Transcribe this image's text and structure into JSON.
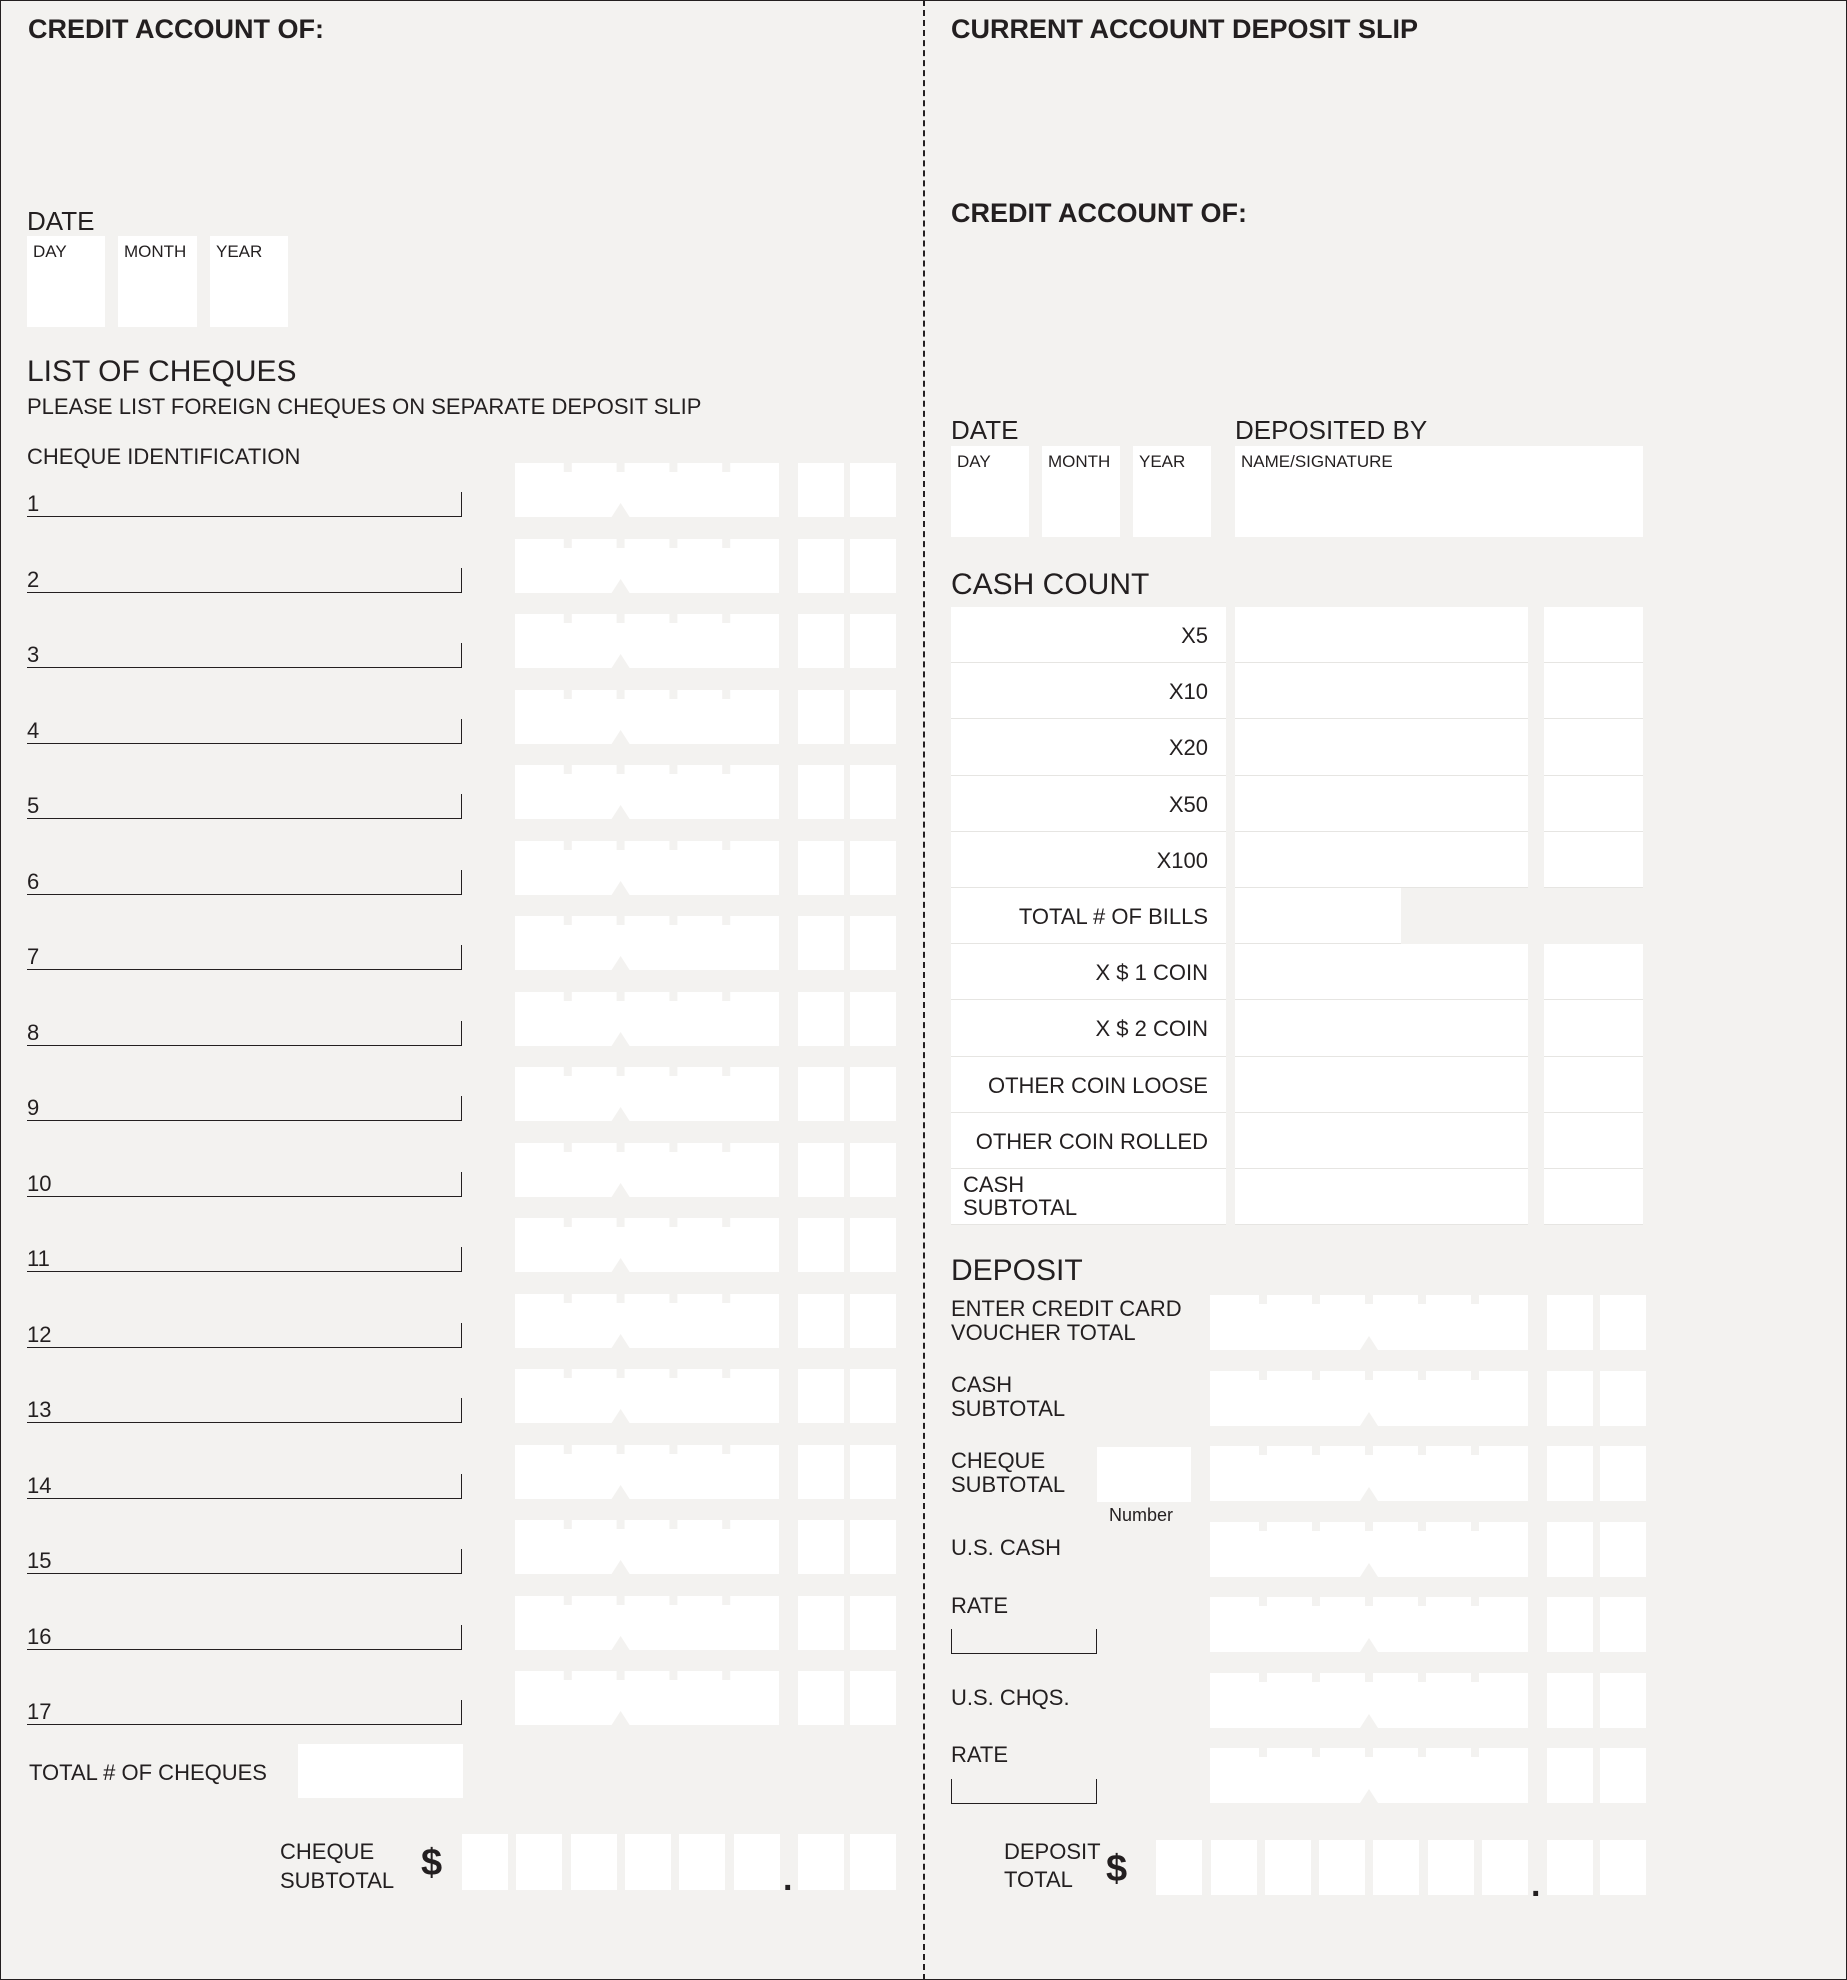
{
  "left": {
    "credit_account_label": "CREDIT ACCOUNT OF:",
    "date_label": "DATE",
    "date_fields": [
      "DAY",
      "MONTH",
      "YEAR"
    ],
    "list_title": "LIST OF CHEQUES",
    "list_note": "PLEASE LIST FOREIGN CHEQUES ON SEPARATE DEPOSIT SLIP",
    "cheque_id_label": "CHEQUE IDENTIFICATION",
    "cheque_rows": [
      "1",
      "2",
      "3",
      "4",
      "5",
      "6",
      "7",
      "8",
      "9",
      "10",
      "11",
      "12",
      "13",
      "14",
      "15",
      "16",
      "17"
    ],
    "total_cheques_label": "TOTAL # OF CHEQUES",
    "subtotal_label_1": "CHEQUE",
    "subtotal_label_2": "SUBTOTAL",
    "currency_symbol": "$",
    "decimal_point": "."
  },
  "right": {
    "title": "CURRENT ACCOUNT DEPOSIT SLIP",
    "credit_account_label": "CREDIT ACCOUNT OF:",
    "date_label": "DATE",
    "date_fields": [
      "DAY",
      "MONTH",
      "YEAR"
    ],
    "deposited_by_label": "DEPOSITED BY",
    "name_signature_label": "NAME/SIGNATURE",
    "cash_count_title": "CASH COUNT",
    "cash_rows": [
      {
        "label": "X5",
        "right": true
      },
      {
        "label": "X10",
        "right": true
      },
      {
        "label": "X20",
        "right": true
      },
      {
        "label": "X50",
        "right": true
      },
      {
        "label": "X100",
        "right": true
      },
      {
        "label": "TOTAL # OF BILLS",
        "right": false
      },
      {
        "label": "X $ 1 COIN",
        "right": true
      },
      {
        "label": "X $ 2 COIN",
        "right": true
      },
      {
        "label": "OTHER COIN LOOSE",
        "right": true
      },
      {
        "label": "OTHER COIN ROLLED",
        "right": true
      },
      {
        "label": "CASH\nSUBTOTAL",
        "right": true
      }
    ],
    "deposit_title": "DEPOSIT",
    "deposit_labels": {
      "credit_card_1": "ENTER CREDIT CARD",
      "credit_card_2": "VOUCHER TOTAL",
      "cash_1": "CASH",
      "cash_2": "SUBTOTAL",
      "cheque_1": "CHEQUE",
      "cheque_2": "SUBTOTAL",
      "number": "Number",
      "us_cash": "U.S. CASH",
      "rate_1": "RATE",
      "us_chqs": "U.S. CHQS.",
      "rate_2": "RATE"
    },
    "total_label_1": "DEPOSIT",
    "total_label_2": "TOTAL",
    "currency_symbol": "$",
    "decimal_point": "."
  },
  "colors": {
    "background": "#f3f2f0",
    "field": "#ffffff",
    "ink": "#231f20"
  }
}
